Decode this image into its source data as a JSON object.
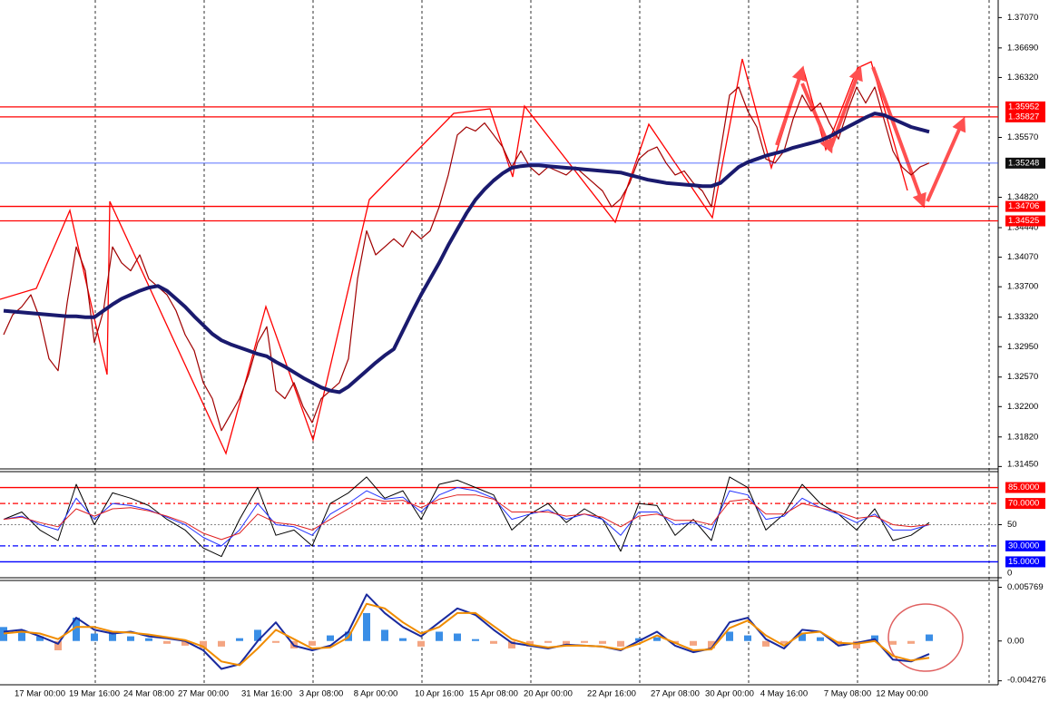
{
  "chart_data": [
    {
      "type": "line",
      "categories": [
        null,
        null,
        null,
        null,
        "17 Mar 00:00",
        null,
        null,
        null,
        null,
        null,
        "19 Mar 16:00",
        null,
        null,
        null,
        null,
        null,
        "24 Mar 08:00",
        null,
        null,
        null,
        null,
        null,
        "27 Mar 00:00",
        null,
        null,
        null,
        null,
        null,
        null,
        "31 Mar 16:00",
        null,
        null,
        null,
        null,
        null,
        "3 Apr 08:00",
        null,
        null,
        null,
        null,
        null,
        "8 Apr 00:00",
        null,
        null,
        null,
        null,
        null,
        null,
        "10 Apr 16:00",
        null,
        null,
        null,
        null,
        null,
        "15 Apr 08:00",
        null,
        null,
        null,
        null,
        null,
        "20 Apr 00:00",
        null,
        null,
        null,
        null,
        null,
        null,
        "22 Apr 16:00",
        null,
        null,
        null,
        null,
        null,
        null,
        "27 Apr 08:00",
        null,
        null,
        null,
        null,
        null,
        "30 Apr 00:00",
        null,
        null,
        null,
        null,
        null,
        "4 May 16:00",
        null,
        null,
        null,
        null,
        null,
        null,
        "7 May 08:00",
        null,
        null,
        null,
        null,
        null,
        "12 May 00:00",
        null,
        null,
        null
      ],
      "series": [
        {
          "color": "#a00000",
          "width": 1.2,
          "values": [
            1.331,
            1.3335,
            1.3345,
            1.336,
            1.333,
            1.328,
            1.3265,
            1.335,
            1.342,
            1.339,
            1.33,
            1.334,
            1.342,
            1.34,
            1.339,
            1.341,
            1.338,
            1.337,
            1.336,
            1.334,
            1.331,
            1.329,
            1.325,
            1.323,
            1.319,
            1.321,
            1.323,
            1.326,
            1.33,
            1.332,
            1.324,
            1.323,
            1.325,
            1.322,
            1.32,
            1.323,
            1.324,
            1.325,
            1.328,
            1.338,
            1.344,
            1.341,
            1.342,
            1.343,
            1.342,
            1.344,
            1.343,
            1.344,
            1.347,
            1.351,
            1.356,
            1.357,
            1.3565,
            1.3575,
            1.356,
            1.3545,
            1.352,
            1.354,
            1.352,
            1.351,
            1.352,
            1.3515,
            1.351,
            1.352,
            1.351,
            1.35,
            1.349,
            1.347,
            1.348,
            1.35,
            1.353,
            1.354,
            1.3545,
            1.3525,
            1.351,
            1.3515,
            1.35,
            1.349,
            1.347,
            1.354,
            1.361,
            1.362,
            1.359,
            1.357,
            1.353,
            1.3525,
            1.354,
            1.358,
            1.361,
            1.359,
            1.36,
            1.3575,
            1.3555,
            1.359,
            1.362,
            1.36,
            1.362,
            1.358,
            1.354,
            1.352,
            1.351,
            1.352,
            1.3525
          ]
        },
        {
          "color": "#1a1a6e",
          "width": 4,
          "values": [
            1.334,
            1.3339,
            1.3338,
            1.3337,
            1.3336,
            1.3335,
            1.3334,
            1.3333,
            1.3333,
            1.3332,
            1.3332,
            1.334,
            1.3348,
            1.3355,
            1.336,
            1.3365,
            1.3369,
            1.3371,
            1.3365,
            1.3355,
            1.3345,
            1.3333,
            1.3322,
            1.3311,
            1.3303,
            1.3298,
            1.3294,
            1.329,
            1.3286,
            1.3283,
            1.3276,
            1.327,
            1.3263,
            1.3256,
            1.325,
            1.3244,
            1.324,
            1.3238,
            1.3245,
            1.3255,
            1.3265,
            1.3275,
            1.3284,
            1.3292,
            1.3315,
            1.3338,
            1.336,
            1.338,
            1.34,
            1.3422,
            1.3442,
            1.3462,
            1.3479,
            1.3492,
            1.3503,
            1.3512,
            1.3519,
            1.3521,
            1.3522,
            1.3522,
            1.3521,
            1.352,
            1.3519,
            1.3518,
            1.3517,
            1.3516,
            1.3515,
            1.3514,
            1.3513,
            1.351,
            1.3507,
            1.3504,
            1.3502,
            1.35,
            1.3499,
            1.3498,
            1.3497,
            1.3496,
            1.3496,
            1.35,
            1.351,
            1.352,
            1.3526,
            1.353,
            1.3534,
            1.3537,
            1.354,
            1.3544,
            1.3547,
            1.355,
            1.3553,
            1.3558,
            1.3564,
            1.357,
            1.3576,
            1.3582,
            1.3587,
            1.3585,
            1.358,
            1.3575,
            1.357,
            1.3567,
            1.3564
          ]
        }
      ],
      "ylim": [
        1.3142,
        1.3729
      ],
      "yticks": [
        {
          "value": 1.3707,
          "label": "1.37070"
        },
        {
          "value": 1.3669,
          "label": "1.36690"
        },
        {
          "value": 1.3632,
          "label": "1.36320"
        },
        {
          "value": 1.3557,
          "label": "1.35570"
        },
        {
          "value": 1.3482,
          "label": "1.34820"
        },
        {
          "value": 1.3444,
          "label": "1.34440"
        },
        {
          "value": 1.3407,
          "label": "1.34070"
        },
        {
          "value": 1.337,
          "label": "1.33700"
        },
        {
          "value": 1.3332,
          "label": "1.33320"
        },
        {
          "value": 1.3295,
          "label": "1.32950"
        },
        {
          "value": 1.3257,
          "label": "1.32570"
        },
        {
          "value": 1.322,
          "label": "1.32200"
        },
        {
          "value": 1.3182,
          "label": "1.31820"
        },
        {
          "value": 1.3145,
          "label": "1.31450"
        }
      ],
      "levels": [
        {
          "value": 1.35952,
          "color": "#ff0000"
        },
        {
          "value": 1.35827,
          "color": "#ff0000"
        },
        {
          "value": 1.34706,
          "color": "#ff0000"
        },
        {
          "value": 1.34525,
          "color": "#ff0000"
        },
        {
          "value": 1.35248,
          "color": "#2040ff",
          "box": "#101010"
        }
      ]
    },
    {
      "type": "line",
      "series": [
        {
          "color": "#000000",
          "width": 1,
          "values": [
            55,
            62,
            45,
            35,
            88,
            50,
            80,
            75,
            68,
            55,
            45,
            28,
            20,
            55,
            85,
            40,
            45,
            30,
            70,
            80,
            95,
            75,
            82,
            55,
            88,
            92,
            85,
            78,
            45,
            60,
            70,
            52,
            65,
            55,
            25,
            70,
            68,
            40,
            55,
            35,
            95,
            85,
            45,
            60,
            88,
            70,
            60,
            45,
            65,
            35,
            40,
            52
          ]
        },
        {
          "color": "#2030ff",
          "width": 1,
          "values": [
            55,
            58,
            50,
            45,
            75,
            55,
            70,
            68,
            64,
            57,
            50,
            38,
            30,
            45,
            70,
            50,
            48,
            40,
            60,
            70,
            82,
            74,
            76,
            62,
            78,
            85,
            82,
            75,
            55,
            60,
            64,
            55,
            60,
            55,
            40,
            62,
            62,
            50,
            52,
            45,
            82,
            78,
            55,
            58,
            75,
            66,
            60,
            52,
            60,
            45,
            45,
            50
          ]
        },
        {
          "color": "#e02020",
          "width": 1,
          "values": [
            55,
            57,
            52,
            48,
            65,
            58,
            65,
            66,
            63,
            58,
            52,
            42,
            36,
            42,
            60,
            52,
            50,
            45,
            55,
            65,
            75,
            72,
            73,
            66,
            74,
            78,
            78,
            74,
            62,
            62,
            62,
            58,
            60,
            57,
            48,
            58,
            60,
            54,
            54,
            50,
            72,
            74,
            60,
            60,
            70,
            66,
            62,
            56,
            58,
            50,
            48,
            50
          ]
        }
      ],
      "ylim": [
        0,
        100
      ],
      "yticks": [
        0,
        50
      ],
      "levels": [
        {
          "value": 85,
          "label": "85.0000",
          "color": "#ff0000",
          "dash": "solid"
        },
        {
          "value": 70,
          "label": "70.0000",
          "color": "#ff0000",
          "dash": "dashdot"
        },
        {
          "value": 30,
          "label": "30.0000",
          "color": "#0000ff",
          "dash": "dashdot"
        },
        {
          "value": 15,
          "label": "15.0000",
          "color": "#0000ff",
          "dash": "solid"
        }
      ]
    },
    {
      "type": "bar",
      "values": [
        0.0015,
        0.0012,
        0.0005,
        -0.001,
        0.0025,
        0.0008,
        0.001,
        0.0005,
        0.0003,
        -0.0003,
        -0.0005,
        -0.0008,
        -0.0006,
        0.0003,
        0.0012,
        -0.0002,
        -0.0008,
        -0.0005,
        0.0006,
        0.001,
        0.003,
        0.0012,
        0.0003,
        -0.0006,
        0.001,
        0.0008,
        0.0002,
        -0.0003,
        -0.0008,
        -0.0006,
        -0.0002,
        -0.0004,
        -0.0002,
        -0.0003,
        -0.0006,
        0.0003,
        0.0004,
        -0.0003,
        -0.0005,
        -0.0008,
        0.001,
        0.0006,
        -0.0006,
        -0.0003,
        0.0009,
        0.0004,
        -0.0004,
        -0.0008,
        0.0006,
        -0.0004,
        -0.0003,
        0.0007
      ],
      "color": "#3a8ee6",
      "negative_color": "#f4a582",
      "series": [
        {
          "color": "#1a2a9e",
          "width": 2,
          "values": [
            0.001,
            0.0012,
            0.0005,
            -0.0003,
            0.0025,
            0.0012,
            0.0008,
            0.001,
            0.0005,
            0.0003,
            0,
            -0.001,
            -0.003,
            -0.0025,
            0,
            0.002,
            -0.0005,
            -0.001,
            -0.0005,
            0.001,
            0.005,
            0.003,
            0.0015,
            0.0005,
            0.002,
            0.0035,
            0.0028,
            0.0012,
            -0.0002,
            -0.0005,
            -0.0008,
            -0.0004,
            -0.0005,
            -0.0006,
            -0.001,
            0,
            0.001,
            -0.0005,
            -0.0012,
            -0.0008,
            0.002,
            0.0025,
            0.0002,
            -0.0008,
            0.0012,
            0.001,
            -0.0005,
            -0.0002,
            0.0002,
            -0.002,
            -0.0022,
            -0.0014
          ]
        },
        {
          "color": "#f08c00",
          "width": 2,
          "values": [
            0.0008,
            0.001,
            0.0008,
            0.0002,
            0.0015,
            0.0015,
            0.001,
            0.0009,
            0.0007,
            0.0004,
            0.0001,
            -0.0006,
            -0.0022,
            -0.0026,
            -0.0008,
            0.0012,
            0.0002,
            -0.0008,
            -0.0007,
            0.0004,
            0.004,
            0.0035,
            0.002,
            0.0008,
            0.0015,
            0.003,
            0.003,
            0.0016,
            0.0002,
            -0.0004,
            -0.0007,
            -0.0005,
            -0.0005,
            -0.0006,
            -0.0009,
            -0.0003,
            0.0006,
            -0.0002,
            -0.001,
            -0.0009,
            0.0014,
            0.0022,
            0.0006,
            -0.0005,
            0.0008,
            0.001,
            -0.0002,
            -0.0003,
            0,
            -0.0016,
            -0.0021,
            -0.0018
          ]
        }
      ],
      "ylim": [
        -0.0047,
        0.0065
      ],
      "yticks": [
        {
          "value": 0.005769,
          "label": "0.005769"
        },
        {
          "value": 0,
          "label": "0.00"
        },
        {
          "value": -0.004276,
          "label": "-0.004276"
        }
      ]
    }
  ]
}
